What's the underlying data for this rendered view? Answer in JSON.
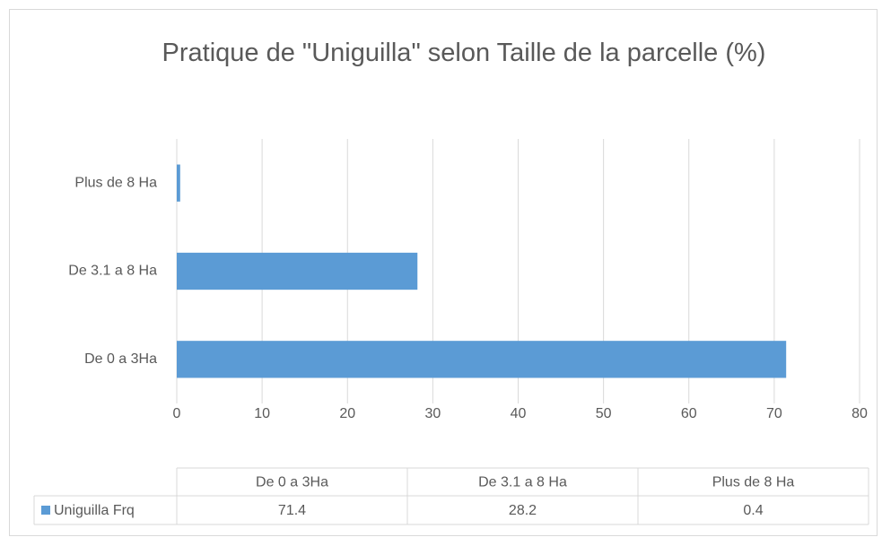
{
  "chart_data": {
    "type": "bar",
    "orientation": "horizontal",
    "title": "Pratique de \"Uniguilla\" selon Taille de la parcelle (%)",
    "categories": [
      "De 0 a 3Ha",
      "De 3.1 a 8 Ha",
      "Plus de 8 Ha"
    ],
    "series": [
      {
        "name": "Uniguilla Frq",
        "color": "#5b9bd5",
        "values": [
          71.4,
          28.2,
          0.4
        ]
      }
    ],
    "xlim": [
      0,
      80
    ],
    "xticks": [
      0,
      10,
      20,
      30,
      40,
      50,
      60,
      70,
      80
    ],
    "grid": true,
    "data_table": true
  }
}
